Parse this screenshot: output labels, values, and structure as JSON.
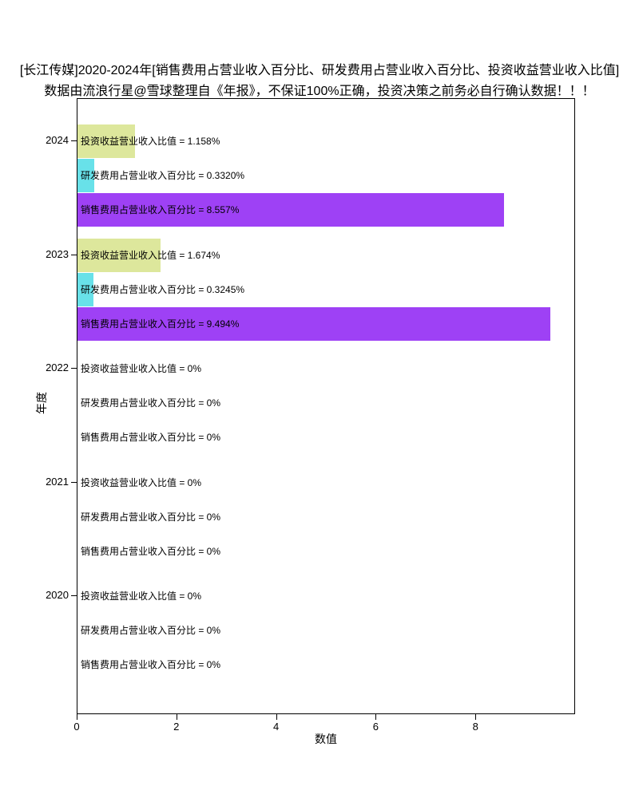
{
  "title": "[长江传媒]2020-2024年[销售费用占营业收入百分比、研发费用占营业收入百分比、投资收益营业收入比值]",
  "subtitle": "数据由流浪行星@雪球整理自《年报》，不保证100%正确，投资决策之前务必自行确认数据！！！",
  "chart_data": {
    "type": "bar",
    "orientation": "horizontal",
    "title": "[长江传媒]2020-2024年[销售费用占营业收入百分比、研发费用占营业收入百分比、投资收益营业收入比值]",
    "subtitle": "数据由流浪行星@雪球整理自《年报》，不保证100%正确，投资决策之前务必自行确认数据！！！",
    "xlabel": "数值",
    "ylabel": "年度",
    "xlim": [
      0,
      9.95
    ],
    "xticks": [
      0,
      2,
      4,
      6,
      8
    ],
    "grid": false,
    "legend": "none",
    "categories": [
      "2024",
      "2023",
      "2022",
      "2021",
      "2020"
    ],
    "series": [
      {
        "name": "投资收益营业收入比值",
        "color": "#dde79c",
        "values": [
          1.158,
          1.674,
          0,
          0,
          0
        ],
        "value_labels": [
          "1.158%",
          "1.674%",
          "0%",
          "0%",
          "0%"
        ]
      },
      {
        "name": "研发费用占营业收入百分比",
        "color": "#68e1e9",
        "values": [
          0.332,
          0.3245,
          0,
          0,
          0
        ],
        "value_labels": [
          "0.3320%",
          "0.3245%",
          "0%",
          "0%",
          "0%"
        ]
      },
      {
        "name": "销售费用占营业收入百分比",
        "color": "#9e41f5",
        "values": [
          8.557,
          9.494,
          0,
          0,
          0
        ],
        "value_labels": [
          "8.557%",
          "9.494%",
          "0%",
          "0%",
          "0%"
        ]
      }
    ],
    "bar_label_format": "{series} = {value}"
  }
}
